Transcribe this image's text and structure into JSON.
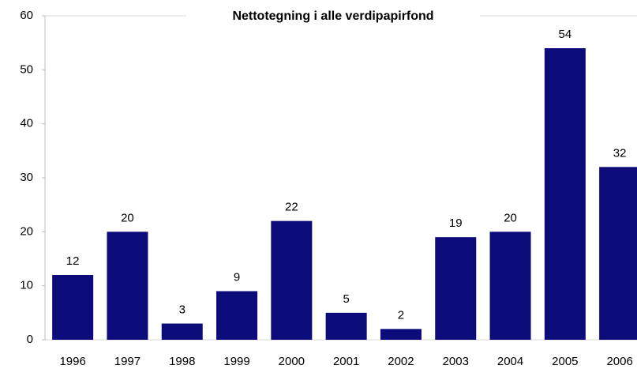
{
  "chart_data": {
    "type": "bar",
    "title": "Nettotegning i alle verdipapirfond",
    "categories": [
      "1996",
      "1997",
      "1998",
      "1999",
      "2000",
      "2001",
      "2002",
      "2003",
      "2004",
      "2005",
      "2006"
    ],
    "values": [
      12,
      20,
      3,
      9,
      22,
      5,
      2,
      19,
      20,
      54,
      32
    ],
    "color": "#0b0b7a",
    "ylim": [
      0,
      60
    ],
    "yticks": [
      0,
      10,
      20,
      30,
      40,
      50,
      60
    ],
    "grid": false
  }
}
